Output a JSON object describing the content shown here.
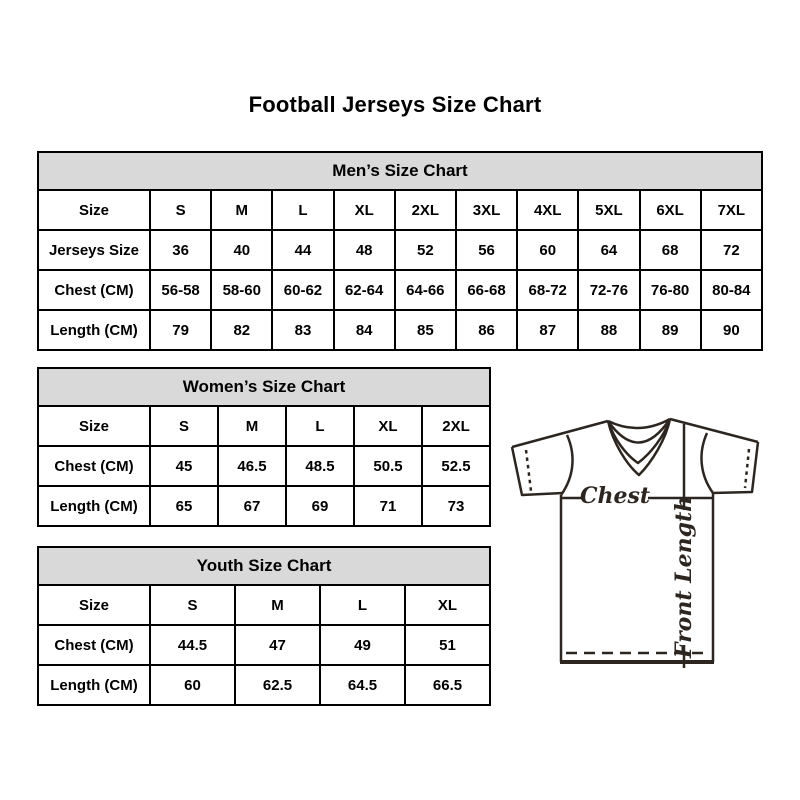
{
  "page": {
    "title": "Football Jerseys Size Chart"
  },
  "tables": [
    {
      "id": "mens",
      "title": "Men’s Size Chart",
      "rows": [
        [
          "Size",
          "S",
          "M",
          "L",
          "XL",
          "2XL",
          "3XL",
          "4XL",
          "5XL",
          "6XL",
          "7XL"
        ],
        [
          "Jerseys Size",
          "36",
          "40",
          "44",
          "48",
          "52",
          "56",
          "60",
          "64",
          "68",
          "72"
        ],
        [
          "Chest (CM)",
          "56-58",
          "58-60",
          "60-62",
          "62-64",
          "64-66",
          "66-68",
          "68-72",
          "72-76",
          "76-80",
          "80-84"
        ],
        [
          "Length (CM)",
          "79",
          "82",
          "83",
          "84",
          "85",
          "86",
          "87",
          "88",
          "89",
          "90"
        ]
      ]
    },
    {
      "id": "womens",
      "title": "Women’s Size Chart",
      "rows": [
        [
          "Size",
          "S",
          "M",
          "L",
          "XL",
          "2XL"
        ],
        [
          "Chest (CM)",
          "45",
          "46.5",
          "48.5",
          "50.5",
          "52.5"
        ],
        [
          "Length (CM)",
          "65",
          "67",
          "69",
          "71",
          "73"
        ]
      ]
    },
    {
      "id": "youth",
      "title": "Youth Size Chart",
      "rows": [
        [
          "Size",
          "S",
          "M",
          "L",
          "XL"
        ],
        [
          "Chest (CM)",
          "44.5",
          "47",
          "49",
          "51"
        ],
        [
          "Length (CM)",
          "60",
          "62.5",
          "64.5",
          "66.5"
        ]
      ]
    }
  ],
  "diagram": {
    "chest_label": "Chest",
    "front_length_label": "Front Length"
  },
  "colors": {
    "background": "#ffffff",
    "text": "#000000",
    "table_border": "#000000",
    "table_header_fill": "#d9d9d9",
    "diagram_line": "#2d2620"
  }
}
